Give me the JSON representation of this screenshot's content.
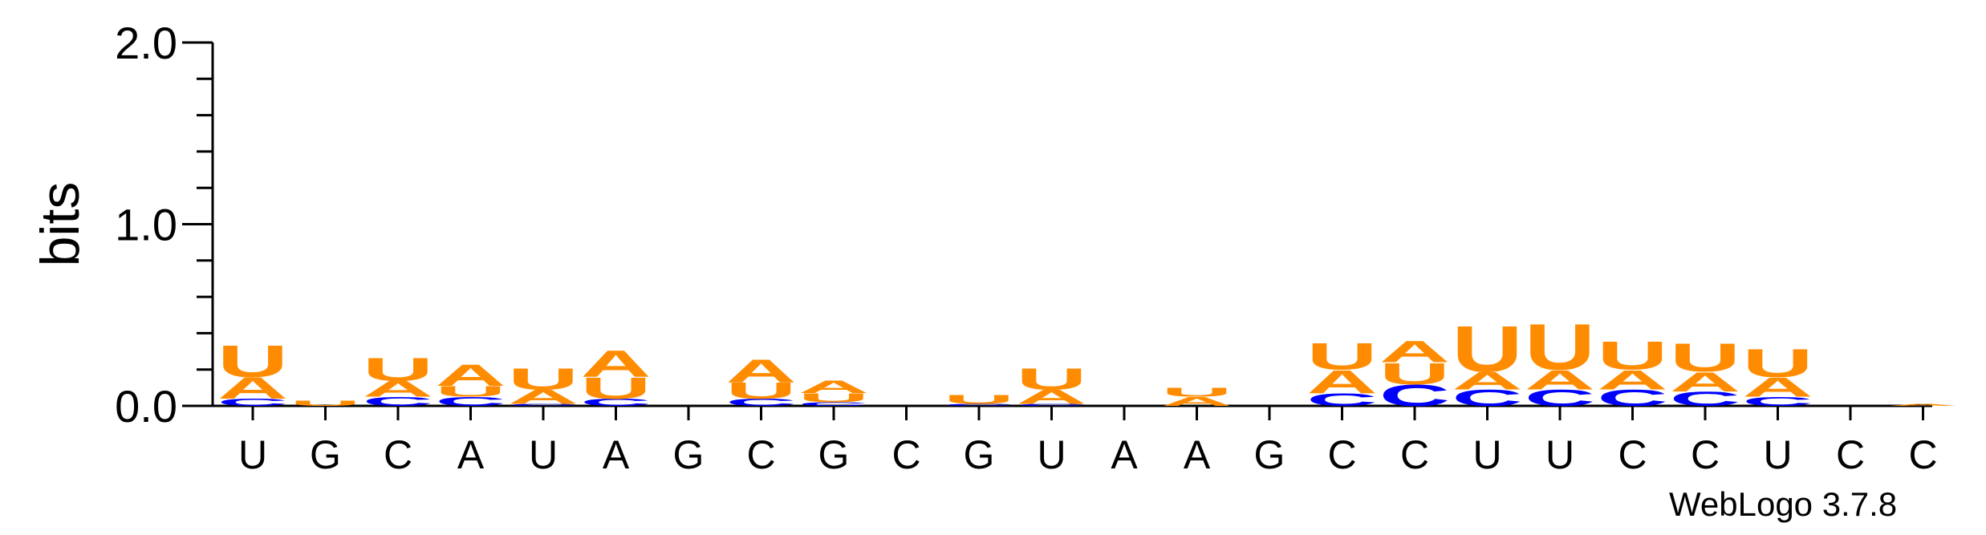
{
  "chart_data": {
    "type": "sequence-logo",
    "ylabel": "bits",
    "ylim": [
      0,
      2.0
    ],
    "yticks": [
      "0.0",
      "1.0",
      "2.0"
    ],
    "x_labels": [
      "U",
      "G",
      "C",
      "A",
      "U",
      "A",
      "G",
      "C",
      "G",
      "C",
      "G",
      "U",
      "A",
      "A",
      "G",
      "C",
      "C",
      "U",
      "U",
      "C",
      "C",
      "U",
      "C",
      "C"
    ],
    "colors": {
      "A": "#ff8c00",
      "U": "#ff8c00",
      "C": "#0000ff",
      "G": "#ffa500"
    },
    "stacks": [
      [
        {
          "l": "C",
          "v": 0.04
        },
        {
          "l": "A",
          "v": 0.12
        },
        {
          "l": "U",
          "v": 0.18
        }
      ],
      [
        {
          "l": "U",
          "v": 0.03
        }
      ],
      [
        {
          "l": "C",
          "v": 0.05
        },
        {
          "l": "A",
          "v": 0.09
        },
        {
          "l": "U",
          "v": 0.13
        }
      ],
      [
        {
          "l": "C",
          "v": 0.05
        },
        {
          "l": "U",
          "v": 0.06
        },
        {
          "l": "A",
          "v": 0.12
        }
      ],
      [
        {
          "l": "C",
          "v": 0.01
        },
        {
          "l": "A",
          "v": 0.08
        },
        {
          "l": "U",
          "v": 0.12
        }
      ],
      [
        {
          "l": "C",
          "v": 0.04
        },
        {
          "l": "U",
          "v": 0.12
        },
        {
          "l": "A",
          "v": 0.15
        }
      ],
      [],
      [
        {
          "l": "C",
          "v": 0.04
        },
        {
          "l": "U",
          "v": 0.09
        },
        {
          "l": "A",
          "v": 0.13
        }
      ],
      [
        {
          "l": "C",
          "v": 0.02
        },
        {
          "l": "U",
          "v": 0.05
        },
        {
          "l": "A",
          "v": 0.07
        }
      ],
      [],
      [
        {
          "l": "C",
          "v": 0.01
        },
        {
          "l": "U",
          "v": 0.05
        }
      ],
      [
        {
          "l": "C",
          "v": 0.01
        },
        {
          "l": "A",
          "v": 0.08
        },
        {
          "l": "U",
          "v": 0.12
        }
      ],
      [],
      [
        {
          "l": "A",
          "v": 0.05
        },
        {
          "l": "U",
          "v": 0.05
        }
      ],
      [],
      [
        {
          "l": "C",
          "v": 0.07
        },
        {
          "l": "A",
          "v": 0.13
        },
        {
          "l": "U",
          "v": 0.15
        }
      ],
      [
        {
          "l": "C",
          "v": 0.12
        },
        {
          "l": "U",
          "v": 0.12
        },
        {
          "l": "A",
          "v": 0.12
        }
      ],
      [
        {
          "l": "C",
          "v": 0.09
        },
        {
          "l": "A",
          "v": 0.1
        },
        {
          "l": "U",
          "v": 0.26
        }
      ],
      [
        {
          "l": "C",
          "v": 0.09
        },
        {
          "l": "A",
          "v": 0.11
        },
        {
          "l": "U",
          "v": 0.26
        }
      ],
      [
        {
          "l": "C",
          "v": 0.09
        },
        {
          "l": "A",
          "v": 0.11
        },
        {
          "l": "U",
          "v": 0.16
        }
      ],
      [
        {
          "l": "C",
          "v": 0.08
        },
        {
          "l": "A",
          "v": 0.11
        },
        {
          "l": "U",
          "v": 0.16
        }
      ],
      [
        {
          "l": "C",
          "v": 0.05
        },
        {
          "l": "A",
          "v": 0.11
        },
        {
          "l": "U",
          "v": 0.16
        }
      ],
      [],
      [
        {
          "l": "A",
          "v": 0.01
        }
      ]
    ]
  },
  "footer": {
    "credit": "WebLogo 3.7.8"
  }
}
